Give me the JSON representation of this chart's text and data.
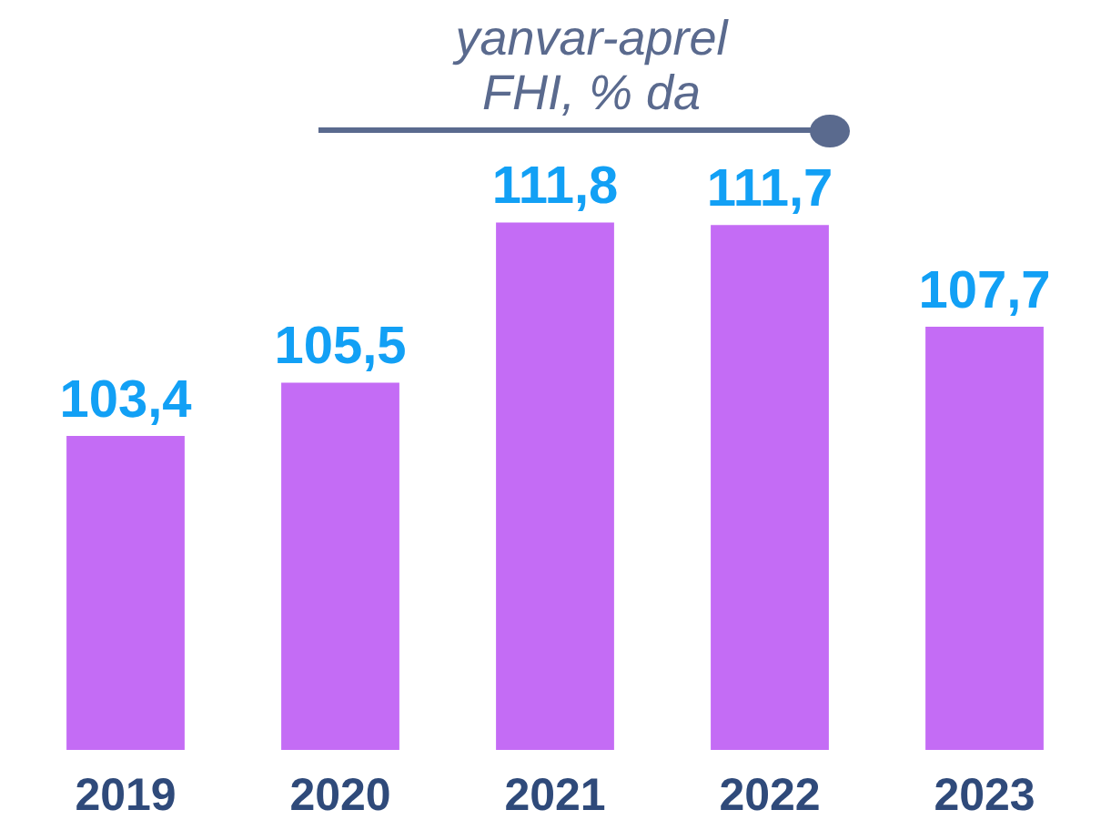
{
  "chart_data": {
    "type": "bar",
    "title": "yanvar-aprel",
    "subtitle": "FHI, % da",
    "categories": [
      "2019",
      "2020",
      "2021",
      "2022",
      "2023"
    ],
    "values": [
      103.4,
      105.5,
      111.8,
      111.7,
      107.7
    ],
    "value_labels": [
      "103,4",
      "105,5",
      "111,8",
      "111,7",
      "107,7"
    ],
    "color": "#c46cf5",
    "legend": false
  }
}
